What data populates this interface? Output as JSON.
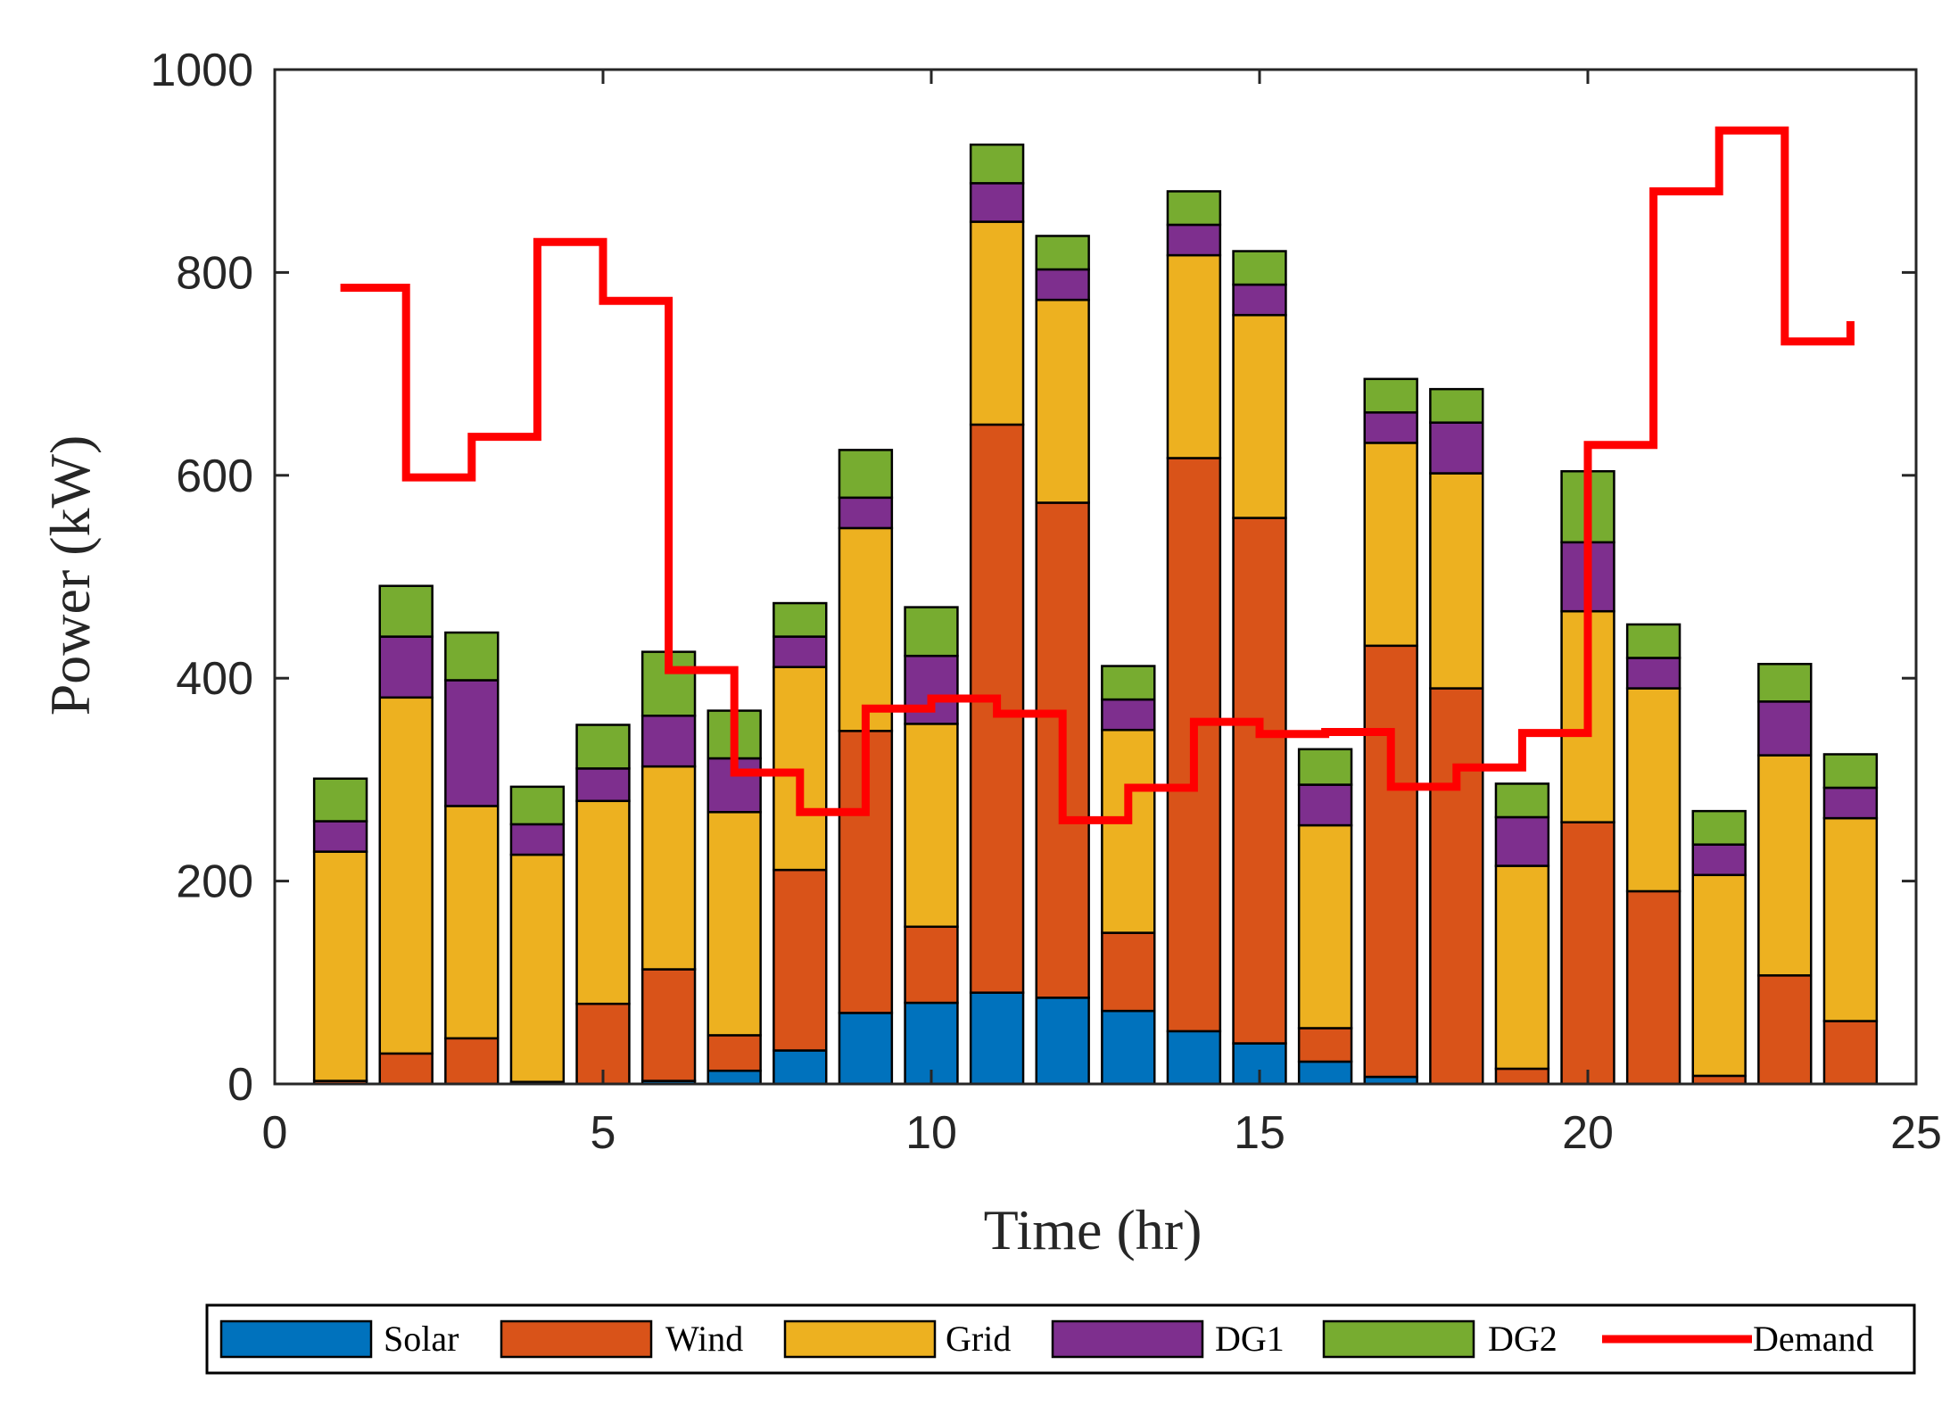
{
  "chart_data": {
    "type": "bar",
    "stacked": true,
    "xlabel": "Time (hr)",
    "ylabel": "Power (kW)",
    "xlim": [
      0,
      25
    ],
    "ylim": [
      0,
      1000
    ],
    "xticks": [
      0,
      5,
      10,
      15,
      20,
      25
    ],
    "yticks": [
      0,
      200,
      400,
      600,
      800,
      1000
    ],
    "x": [
      1,
      2,
      3,
      4,
      5,
      6,
      7,
      8,
      9,
      10,
      11,
      12,
      13,
      14,
      15,
      16,
      17,
      18,
      19,
      20,
      21,
      22,
      23,
      24
    ],
    "series": [
      {
        "name": "Solar",
        "color": "#0072BD",
        "values": [
          0,
          0,
          0,
          0,
          0,
          3,
          13,
          33,
          70,
          80,
          90,
          85,
          72,
          52,
          40,
          22,
          7,
          0,
          0,
          0,
          0,
          0,
          0,
          0
        ]
      },
      {
        "name": "Wind",
        "color": "#D95319",
        "values": [
          3,
          30,
          45,
          2,
          79,
          110,
          35,
          178,
          278,
          75,
          560,
          488,
          77,
          565,
          518,
          33,
          425,
          390,
          15,
          258,
          190,
          8,
          107,
          62
        ]
      },
      {
        "name": "Grid",
        "color": "#EDB120",
        "values": [
          226,
          351,
          229,
          224,
          200,
          200,
          220,
          200,
          200,
          200,
          200,
          200,
          200,
          200,
          200,
          200,
          200,
          212,
          200,
          208,
          200,
          198,
          217,
          200
        ]
      },
      {
        "name": "DG1",
        "color": "#7E2F8E",
        "values": [
          30,
          60,
          124,
          30,
          32,
          50,
          53,
          30,
          30,
          67,
          38,
          30,
          30,
          30,
          30,
          40,
          30,
          50,
          48,
          68,
          30,
          30,
          53,
          30
        ]
      },
      {
        "name": "DG2",
        "color": "#77AC30",
        "values": [
          42,
          50,
          47,
          37,
          43,
          63,
          47,
          33,
          47,
          48,
          38,
          33,
          33,
          33,
          33,
          35,
          33,
          33,
          33,
          70,
          33,
          33,
          37,
          33
        ]
      }
    ],
    "demand": {
      "name": "Demand",
      "color": "#FF0000",
      "x": [
        1,
        2,
        3,
        4,
        5,
        6,
        7,
        8,
        9,
        10,
        11,
        12,
        13,
        14,
        15,
        16,
        17,
        18,
        19,
        20,
        21,
        22,
        23,
        24
      ],
      "values": [
        785,
        598,
        638,
        830,
        772,
        408,
        307,
        268,
        370,
        380,
        365,
        260,
        292,
        357,
        345,
        347,
        293,
        312,
        346,
        630,
        880,
        940,
        732,
        752
      ]
    },
    "legend_position": "bottom, outside"
  },
  "legend": {
    "items": [
      "Solar",
      "Wind",
      "Grid",
      "DG1",
      "DG2",
      "Demand"
    ]
  }
}
